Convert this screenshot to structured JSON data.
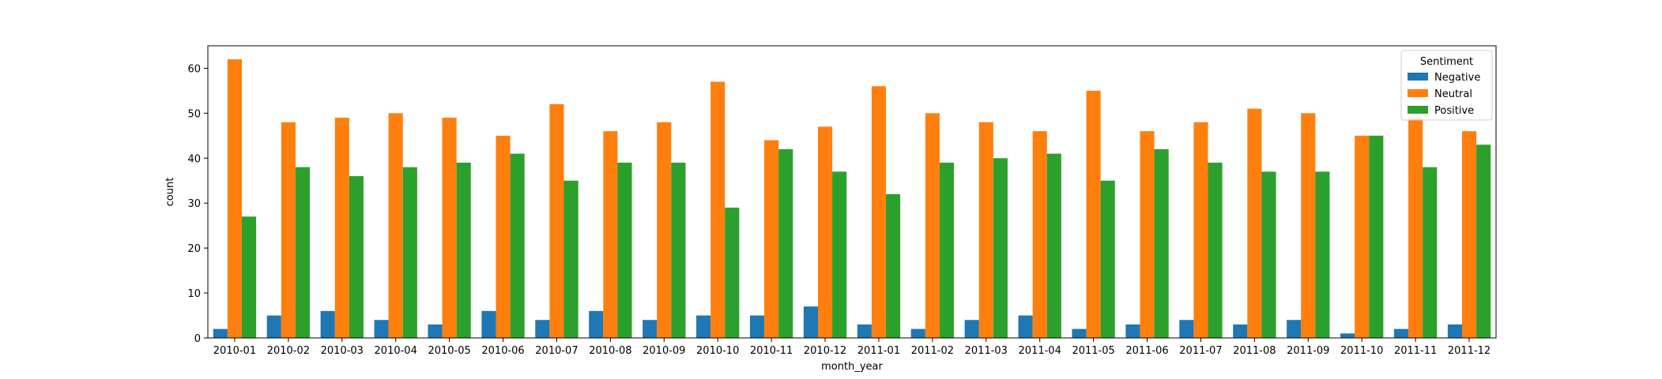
{
  "chart_data": {
    "type": "bar",
    "title": "",
    "xlabel": "month_year",
    "ylabel": "count",
    "ylim": [
      0,
      65
    ],
    "yticks": [
      0,
      10,
      20,
      30,
      40,
      50,
      60
    ],
    "grid": false,
    "legend": {
      "title": "Sentiment",
      "placement": "top-right"
    },
    "categories": [
      "2010-01",
      "2010-02",
      "2010-03",
      "2010-04",
      "2010-05",
      "2010-06",
      "2010-07",
      "2010-08",
      "2010-09",
      "2010-10",
      "2010-11",
      "2010-12",
      "2011-01",
      "2011-02",
      "2011-03",
      "2011-04",
      "2011-05",
      "2011-06",
      "2011-07",
      "2011-08",
      "2011-09",
      "2011-10",
      "2011-11",
      "2011-12"
    ],
    "series": [
      {
        "name": "Negative",
        "color": "#1f77b4",
        "values": [
          2,
          5,
          6,
          4,
          3,
          6,
          4,
          6,
          4,
          5,
          5,
          7,
          3,
          2,
          4,
          5,
          2,
          3,
          4,
          3,
          4,
          1,
          2,
          3
        ]
      },
      {
        "name": "Neutral",
        "color": "#ff7f0e",
        "values": [
          62,
          48,
          49,
          50,
          49,
          45,
          52,
          46,
          48,
          57,
          44,
          47,
          56,
          50,
          48,
          46,
          55,
          46,
          48,
          51,
          50,
          45,
          49,
          46
        ]
      },
      {
        "name": "Positive",
        "color": "#2ca02c",
        "values": [
          27,
          38,
          36,
          38,
          39,
          41,
          35,
          39,
          39,
          29,
          42,
          37,
          32,
          39,
          40,
          41,
          35,
          42,
          39,
          37,
          37,
          45,
          38,
          43
        ]
      }
    ]
  }
}
